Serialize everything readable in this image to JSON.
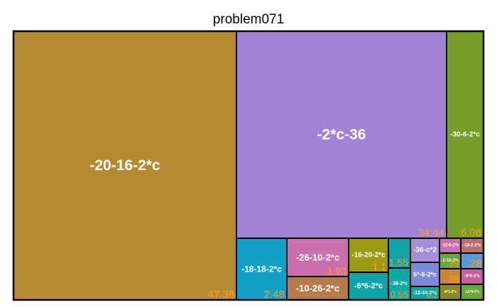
{
  "chart_data": {
    "type": "treemap",
    "title": "problem071",
    "colors": {
      "value_text": "#ff9f1c",
      "label_text": "#ffffff",
      "border": "#000000"
    },
    "items": [
      {
        "label": "-20-16-2*c",
        "value": "47.38",
        "color": "#b58a33"
      },
      {
        "label": "-2*c-36",
        "value": "34.44",
        "color": "#a183d6"
      },
      {
        "label": "-30-6-2*c",
        "value": "6.06",
        "color": "#779c2a"
      },
      {
        "label": "-18-18-2*c",
        "value": "2.48",
        "color": "#13a0c7"
      },
      {
        "label": "-26-10-2*c",
        "value": "1.93",
        "color": "#cc6fae"
      },
      {
        "label": "-10-26-2*c",
        "value": "",
        "color": "#b57a4e"
      },
      {
        "label": "-16-20-2*c",
        "value": "1.1",
        "color": "#9c9a14"
      },
      {
        "label": "-6*6-2*c",
        "value": "",
        "color": "#0da3a8"
      },
      {
        "label": "",
        "value": "1.55",
        "color": "#11a3a5"
      },
      {
        "label": "-36-2*c",
        "value": "0.55",
        "color": "#0ea9a3"
      },
      {
        "label": "-36-c*2",
        "value": "",
        "color": "#a58dd8"
      },
      {
        "label": "6*-6-2*c",
        "value": "",
        "color": "#7d8ad8"
      },
      {
        "label": "-12-24-2*c",
        "value": "0.2",
        "color": "#13a6a0"
      },
      {
        "label": "-12-6-2*c",
        "value": "",
        "color": "#c96fb0"
      },
      {
        "label": "-18-2-2*c",
        "value": "",
        "color": "#ba6f75"
      },
      {
        "label": "-2-18-2*c",
        "value": ".39",
        "color": "#64a63c"
      },
      {
        "label": "",
        "value": ".28",
        "color": "#5f98d6"
      },
      {
        "label": "",
        "value": ".28",
        "color": "#c9873a"
      },
      {
        "label": "-6*4-2*c",
        "value": "",
        "color": "#c8609a"
      },
      {
        "label": "-6*1-2*c",
        "value": "",
        "color": "#8a8a1e"
      },
      {
        "label": "-12*4-2*c",
        "value": "",
        "color": "#6aa63a"
      }
    ]
  }
}
